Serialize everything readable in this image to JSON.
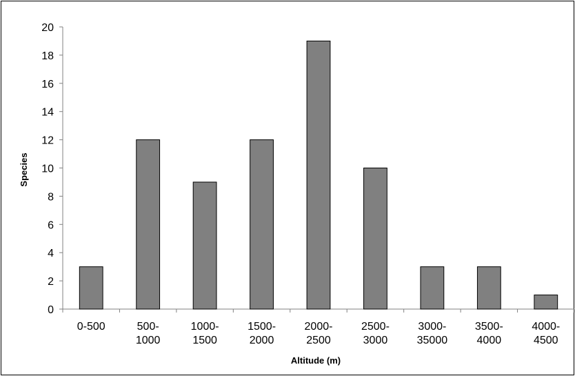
{
  "chart_data": {
    "type": "bar",
    "title": "",
    "xlabel": "Altitude (m)",
    "ylabel": "Species",
    "categories": [
      [
        "0-500"
      ],
      [
        "500-",
        "1000"
      ],
      [
        "1000-",
        "1500"
      ],
      [
        "1500-",
        "2000"
      ],
      [
        "2000-",
        "2500"
      ],
      [
        "2500-",
        "3000"
      ],
      [
        "3000-",
        "35000"
      ],
      [
        "3500-",
        "4000"
      ],
      [
        "4000-",
        "4500"
      ]
    ],
    "values": [
      3,
      12,
      9,
      12,
      19,
      10,
      3,
      3,
      1
    ],
    "ylim": [
      0,
      20
    ],
    "yticks": [
      "0",
      "2",
      "4",
      "6",
      "8",
      "10",
      "12",
      "14",
      "16",
      "18",
      "20"
    ],
    "grid": false,
    "legend": "none",
    "colors": {
      "bar": "#808080",
      "bar_edge": "#000000",
      "axis": "#808080"
    }
  }
}
